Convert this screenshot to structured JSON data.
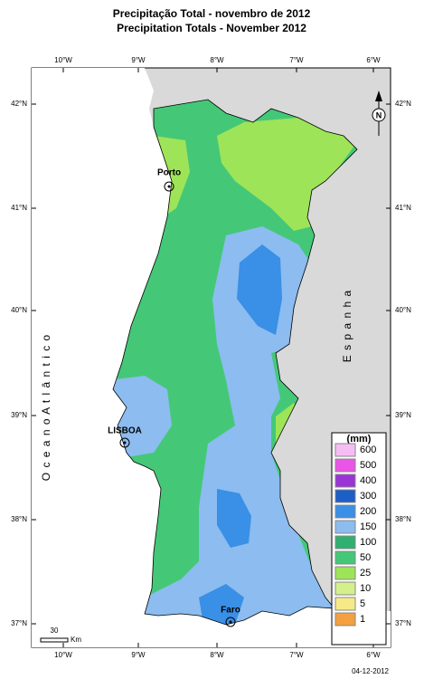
{
  "header": {
    "title": "Precipitação Total  - novembro de 2012",
    "subtitle": "Precipitation Totals - November 2012"
  },
  "axes": {
    "longitudes": [
      "10°W",
      "9°W",
      "8°W",
      "7°W",
      "6°W"
    ],
    "latitudes": [
      "42°N",
      "41°N",
      "40°N",
      "39°N",
      "38°N",
      "37°N"
    ]
  },
  "labels": {
    "ocean": "O c e a n o   A t l â n t i c o",
    "spain": "E s p a n h a",
    "north": "N",
    "cities": [
      "Porto",
      "LISBOA",
      "Faro"
    ]
  },
  "legend": {
    "title": "(mm)",
    "items": [
      {
        "label": "600",
        "color": "#f6bdf4"
      },
      {
        "label": "500",
        "color": "#ea55e8"
      },
      {
        "label": "400",
        "color": "#9b34d6"
      },
      {
        "label": "300",
        "color": "#1c5fc6"
      },
      {
        "label": "200",
        "color": "#3a8fe6"
      },
      {
        "label": "150",
        "color": "#8cbcf0"
      },
      {
        "label": "100",
        "color": "#2fb070"
      },
      {
        "label": "50",
        "color": "#44c878"
      },
      {
        "label": "25",
        "color": "#9ee458"
      },
      {
        "label": "10",
        "color": "#d4f08c"
      },
      {
        "label": "5",
        "color": "#f6ea86"
      },
      {
        "label": "1",
        "color": "#f5a040"
      }
    ]
  },
  "scale": {
    "distance": "30",
    "unit": "Km"
  },
  "footer": {
    "date": "04-12-2012"
  }
}
